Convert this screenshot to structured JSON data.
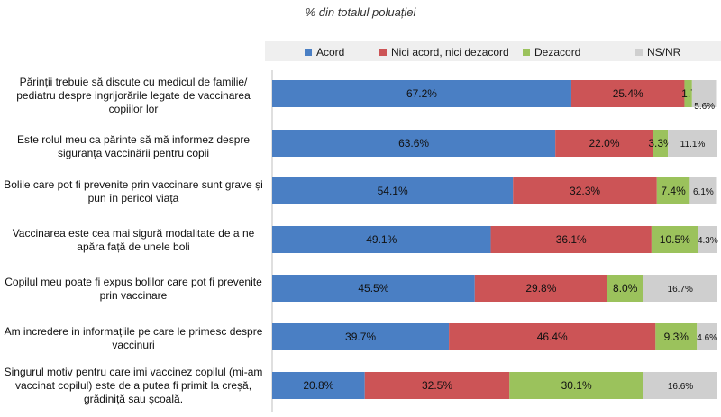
{
  "title": "% din totalul poluației",
  "colors": {
    "Acord": "#4a7fc4",
    "Nici acord, nici dezacord": "#cc5456",
    "Dezacord": "#9bc25c",
    "NS/NR": "#cfcfcf"
  },
  "legend": [
    "Acord",
    "Nici acord, nici dezacord",
    "Dezacord",
    "NS/NR"
  ],
  "chart_data": {
    "type": "bar",
    "orientation": "horizontal-stacked-100",
    "title": "% din totalul poluației",
    "legend_placement": "top",
    "categories": [
      "Părinții trebuie să discute cu medicul de familie/ pediatru despre ingrijorările legate de vaccinarea copiilor lor",
      "Este rolul meu ca părinte să mă informez despre siguranța vaccinării pentru copii",
      "Bolile care pot fi prevenite prin vaccinare sunt grave și pun în pericol viața",
      "Vaccinarea este cea mai sigură modalitate de a ne apăra față de unele boli",
      "Copilul meu poate fi  expus  bolilor care pot fi prevenite prin vaccinare",
      "Am incredere in informațiile pe care le primesc despre vaccinuri",
      "Singurul motiv pentru care imi vaccinez copilul (mi-am vaccinat copilul) este  de a putea fi primit  la creșă, grădiniță sau școală."
    ],
    "series": [
      {
        "name": "Acord",
        "values": [
          67.2,
          63.6,
          54.1,
          49.1,
          45.5,
          39.7,
          20.8
        ],
        "labels": [
          "67.2%",
          "63.6%",
          "54.1%",
          "49.1%",
          "45.5%",
          "39.7%",
          "20.8%"
        ]
      },
      {
        "name": "Nici acord, nici dezacord",
        "values": [
          25.4,
          22.0,
          32.3,
          36.1,
          29.8,
          46.4,
          32.5
        ],
        "labels": [
          "25.4%",
          "22.0%",
          "32.3%",
          "36.1%",
          "29.8%",
          "46.4%",
          "32.5%"
        ]
      },
      {
        "name": "Dezacord",
        "values": [
          1.7,
          3.3,
          7.4,
          10.5,
          8.0,
          9.3,
          30.1
        ],
        "labels": [
          "1.7%",
          "3.3%",
          "7.4%",
          "10.5%",
          "8.0%",
          "9.3%",
          "30.1%"
        ]
      },
      {
        "name": "NS/NR",
        "values": [
          5.6,
          11.1,
          6.1,
          4.3,
          16.7,
          4.6,
          16.6
        ],
        "labels": [
          "5.6%",
          "11.1%",
          "6.1%",
          "4.3%",
          "16.7%",
          "4.6%",
          "16.6%"
        ]
      }
    ]
  }
}
